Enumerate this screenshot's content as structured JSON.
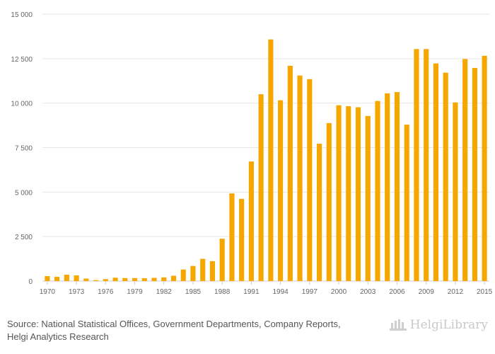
{
  "chart_data": {
    "type": "bar",
    "title": "",
    "xlabel": "",
    "ylabel": "",
    "ylim": [
      0,
      15000
    ],
    "y_ticks": [
      0,
      2500,
      5000,
      7500,
      10000,
      12500,
      15000
    ],
    "y_tick_labels": [
      "0",
      "2 500",
      "5 000",
      "7 500",
      "10 000",
      "12 500",
      "15 000"
    ],
    "x_tick_labels": [
      "1970",
      "1973",
      "1976",
      "1979",
      "1982",
      "1985",
      "1988",
      "1991",
      "1994",
      "1997",
      "2000",
      "2003",
      "2006",
      "2009",
      "2012",
      "2015"
    ],
    "categories": [
      "1970",
      "1971",
      "1972",
      "1973",
      "1974",
      "1975",
      "1976",
      "1977",
      "1978",
      "1979",
      "1980",
      "1981",
      "1982",
      "1983",
      "1984",
      "1985",
      "1986",
      "1987",
      "1988",
      "1989",
      "1990",
      "1991",
      "1992",
      "1993",
      "1994",
      "1995",
      "1996",
      "1997",
      "1998",
      "1999",
      "2000",
      "2001",
      "2002",
      "2003",
      "2004",
      "2005",
      "2006",
      "2007",
      "2008",
      "2009",
      "2010",
      "2011",
      "2012",
      "2013",
      "2014",
      "2015"
    ],
    "values": [
      280,
      240,
      360,
      320,
      140,
      50,
      110,
      190,
      170,
      170,
      160,
      180,
      210,
      300,
      650,
      850,
      1250,
      1120,
      2380,
      4930,
      4620,
      6720,
      10500,
      13580,
      10160,
      12100,
      11550,
      11350,
      7720,
      8880,
      9880,
      9830,
      9770,
      9280,
      10120,
      10550,
      10620,
      8790,
      13040,
      13040,
      12230,
      11710,
      10040,
      12480,
      11980,
      12660
    ],
    "bar_color": "#f5a700",
    "grid": true
  },
  "footer": {
    "source_line1": "Source: National Statistical Offices, Government Departments, Company Reports,",
    "source_line2": "Helgi Analytics Research",
    "logo_text": "HelgiLibrary",
    "logo_icon": "helgi-building-icon"
  }
}
